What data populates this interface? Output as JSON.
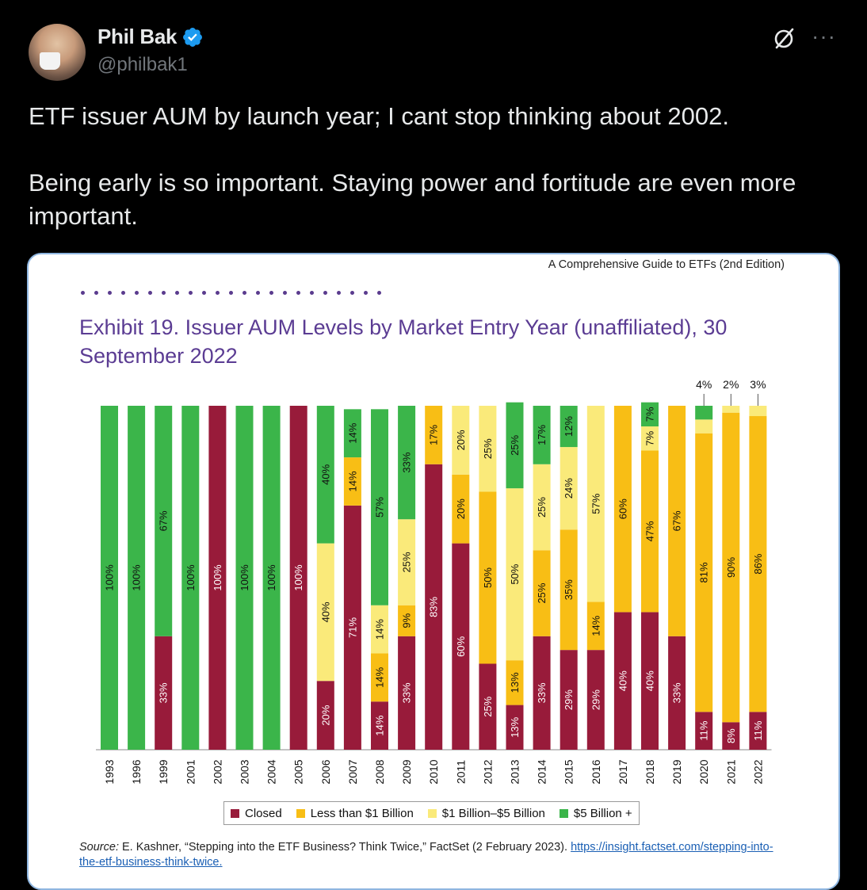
{
  "author": {
    "name": "Phil Bak",
    "handle": "@philbak1",
    "verified_icon": "verified-badge-icon",
    "avatar_icon": "avatar-photo"
  },
  "actions": {
    "grok_icon": "grok-icon",
    "more_label": "···"
  },
  "tweet": {
    "text": "ETF issuer AUM by launch year; I cant stop thinking about 2002.\n\nBeing early is so important. Staying power and fortitude are even more important."
  },
  "figure": {
    "book_title": "A Comprehensive Guide to ETFs (2nd Edition)",
    "exhibit_title": "Exhibit 19. Issuer AUM Levels by Market Entry Year (unaffiliated), 30 September 2022",
    "source_label": "Source:",
    "source_text": " E. Kashner, “Stepping into the ETF Business? Think Twice,” FactSet (2 February 2023). ",
    "source_link": "https://insight.factset.com/stepping-into-the-etf-business-think-twice."
  },
  "colors": {
    "closed": "#981b3a",
    "less_than_1b": "#f8be15",
    "one_to_five_b": "#faea7a",
    "five_b_plus": "#3bb54a"
  },
  "chart_data": {
    "type": "bar",
    "stacked": true,
    "orientation": "vertical",
    "ylim": [
      0,
      100
    ],
    "categories": [
      "1993",
      "1996",
      "1999",
      "2001",
      "2002",
      "2003",
      "2004",
      "2005",
      "2006",
      "2007",
      "2008",
      "2009",
      "2010",
      "2011",
      "2012",
      "2013",
      "2014",
      "2015",
      "2016",
      "2017",
      "2018",
      "2019",
      "2020",
      "2021",
      "2022"
    ],
    "series": [
      {
        "name": "Closed",
        "color": "#981b3a",
        "values": [
          0,
          0,
          33,
          0,
          100,
          0,
          0,
          100,
          20,
          71,
          14,
          33,
          83,
          60,
          25,
          13,
          33,
          29,
          29,
          40,
          40,
          33,
          11,
          8,
          11
        ],
        "labels": [
          "",
          "",
          "33%",
          "",
          "100%",
          "",
          "",
          "100%",
          "20%",
          "71%",
          "14%",
          "33%",
          "83%",
          "60%",
          "25%",
          "13%",
          "33%",
          "29%",
          "29%",
          "40%",
          "40%",
          "33%",
          "11%",
          "8%",
          "11%"
        ]
      },
      {
        "name": "Less than $1 Billion",
        "color": "#f8be15",
        "values": [
          0,
          0,
          0,
          0,
          0,
          0,
          0,
          0,
          0,
          14,
          14,
          9,
          17,
          20,
          50,
          13,
          25,
          35,
          14,
          60,
          47,
          67,
          81,
          90,
          86
        ],
        "labels": [
          "",
          "",
          "",
          "",
          "",
          "",
          "",
          "",
          "",
          "14%",
          "14%",
          "9%",
          "17%",
          "20%",
          "50%",
          "13%",
          "25%",
          "35%",
          "14%",
          "60%",
          "47%",
          "67%",
          "81%",
          "90%",
          "86%"
        ]
      },
      {
        "name": "$1 Billion–$5 Billion",
        "color": "#faea7a",
        "values": [
          0,
          0,
          0,
          0,
          0,
          0,
          0,
          0,
          40,
          0,
          14,
          25,
          0,
          20,
          25,
          50,
          25,
          24,
          57,
          0,
          7,
          0,
          4,
          2,
          3
        ],
        "labels": [
          "",
          "",
          "",
          "",
          "",
          "",
          "",
          "",
          "40%",
          "",
          "14%",
          "25%",
          "",
          "20%",
          "25%",
          "50%",
          "25%",
          "24%",
          "57%",
          "",
          "7%",
          "",
          "4%",
          "2%",
          "3%"
        ]
      },
      {
        "name": "$5 Billion +",
        "color": "#3bb54a",
        "values": [
          100,
          100,
          67,
          100,
          0,
          100,
          100,
          0,
          40,
          14,
          57,
          33,
          0,
          0,
          0,
          25,
          17,
          12,
          0,
          0,
          7,
          0,
          4,
          0,
          0
        ],
        "labels": [
          "100%",
          "100%",
          "67%",
          "100%",
          "",
          "100%",
          "100%",
          "",
          "40%",
          "14%",
          "57%",
          "33%",
          "",
          "",
          "",
          "25%",
          "17%",
          "12%",
          "",
          "",
          "7%",
          "",
          "4%",
          "",
          ""
        ]
      }
    ],
    "top_callouts": [
      "4%",
      "2%",
      "3%"
    ],
    "legend_placement": "bottom",
    "grid": false
  }
}
